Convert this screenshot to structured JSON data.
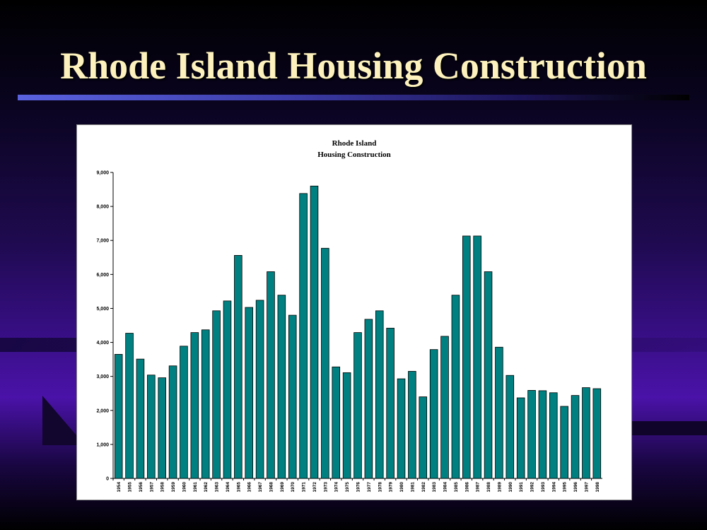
{
  "slide": {
    "title": "Rhode Island Housing Construction"
  },
  "chart_data": {
    "type": "bar",
    "title": "Rhode Island",
    "subtitle": "Housing Construction",
    "xlabel": "",
    "ylabel": "",
    "ylim": [
      0,
      9000
    ],
    "yticks": [
      "0",
      "1,000",
      "2,000",
      "3,000",
      "4,000",
      "5,000",
      "6,000",
      "7,000",
      "8,000",
      "9,000"
    ],
    "grid": false,
    "bar_color": "#008080",
    "categories": [
      "1954",
      "1955",
      "1956",
      "1957",
      "1958",
      "1959",
      "1960",
      "1961",
      "1962",
      "1963",
      "1964",
      "1965",
      "1966",
      "1967",
      "1968",
      "1969",
      "1970",
      "1971",
      "1972",
      "1973",
      "1974",
      "1975",
      "1976",
      "1977",
      "1978",
      "1979",
      "1980",
      "1981",
      "1982",
      "1983",
      "1984",
      "1985",
      "1986",
      "1987",
      "1988",
      "1989",
      "1990",
      "1991",
      "1992",
      "1993",
      "1994",
      "1995",
      "1996",
      "1997",
      "1998"
    ],
    "values": [
      3650,
      4270,
      3510,
      3040,
      2960,
      3310,
      3890,
      4290,
      4370,
      4930,
      5220,
      6560,
      5030,
      5240,
      6080,
      5390,
      4800,
      8380,
      8600,
      6770,
      3280,
      3110,
      4290,
      4680,
      4930,
      4420,
      2930,
      3150,
      2400,
      3790,
      4180,
      5390,
      7130,
      7130,
      6080,
      3860,
      3030,
      2370,
      2590,
      2580,
      2520,
      2120,
      2440,
      2670,
      2640
    ]
  }
}
